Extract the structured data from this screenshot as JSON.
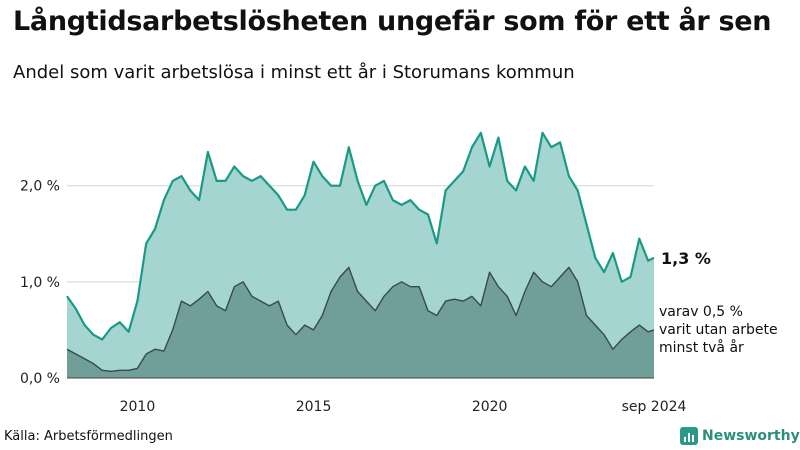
{
  "header": {
    "title": "Långtidsarbetslösheten ungefär som för ett år sen",
    "subtitle": "Andel som varit arbetslösa i minst ett år i Storumans kommun"
  },
  "footer": {
    "source": "Källa: Arbetsförmedlingen",
    "brand": "Newsworthy"
  },
  "colors": {
    "total_line": "#1a9a85",
    "total_fill": "#a4d5d0",
    "long_line": "#3b4a45",
    "long_fill": "#6f9f98",
    "grid": "#d6d6d6"
  },
  "chart_data": {
    "type": "area",
    "title": "Långtidsarbetslösheten ungefär som för ett år sen",
    "subtitle": "Andel som varit arbetslösa i minst ett år i Storumans kommun",
    "unit": "%",
    "ylim": [
      0,
      2.6
    ],
    "yticks": [
      0,
      1.0,
      2.0
    ],
    "ytick_labels": [
      "0,0 %",
      "1,0 %",
      "2,0 %"
    ],
    "xlim": [
      "2008-01",
      "2024-09"
    ],
    "xticks": [
      "2010-01",
      "2015-01",
      "2020-01",
      "2024-09"
    ],
    "xtick_labels": [
      "2010",
      "2015",
      "2020",
      "sep 2024"
    ],
    "grid": true,
    "annotations": {
      "total_end_label": "1,3 %",
      "long_end_label": [
        "varav 0,5 %",
        "varit utan arbete",
        "minst två år"
      ]
    },
    "series": [
      {
        "name": "varit arbetslösa i minst ett år",
        "points": [
          [
            "2008-01",
            0.85
          ],
          [
            "2008-04",
            0.72
          ],
          [
            "2008-07",
            0.55
          ],
          [
            "2008-10",
            0.45
          ],
          [
            "2009-01",
            0.4
          ],
          [
            "2009-04",
            0.52
          ],
          [
            "2009-07",
            0.58
          ],
          [
            "2009-10",
            0.48
          ],
          [
            "2010-01",
            0.8
          ],
          [
            "2010-04",
            1.4
          ],
          [
            "2010-07",
            1.55
          ],
          [
            "2010-10",
            1.85
          ],
          [
            "2011-01",
            2.05
          ],
          [
            "2011-04",
            2.1
          ],
          [
            "2011-07",
            1.95
          ],
          [
            "2011-10",
            1.85
          ],
          [
            "2012-01",
            2.35
          ],
          [
            "2012-04",
            2.05
          ],
          [
            "2012-07",
            2.05
          ],
          [
            "2012-10",
            2.2
          ],
          [
            "2013-01",
            2.1
          ],
          [
            "2013-04",
            2.05
          ],
          [
            "2013-07",
            2.1
          ],
          [
            "2013-10",
            2.0
          ],
          [
            "2014-01",
            1.9
          ],
          [
            "2014-04",
            1.75
          ],
          [
            "2014-07",
            1.75
          ],
          [
            "2014-10",
            1.9
          ],
          [
            "2015-01",
            2.25
          ],
          [
            "2015-04",
            2.1
          ],
          [
            "2015-07",
            2.0
          ],
          [
            "2015-10",
            2.0
          ],
          [
            "2016-01",
            2.4
          ],
          [
            "2016-04",
            2.05
          ],
          [
            "2016-07",
            1.8
          ],
          [
            "2016-10",
            2.0
          ],
          [
            "2017-01",
            2.05
          ],
          [
            "2017-04",
            1.85
          ],
          [
            "2017-07",
            1.8
          ],
          [
            "2017-10",
            1.85
          ],
          [
            "2018-01",
            1.75
          ],
          [
            "2018-04",
            1.7
          ],
          [
            "2018-07",
            1.4
          ],
          [
            "2018-10",
            1.95
          ],
          [
            "2019-01",
            2.05
          ],
          [
            "2019-04",
            2.15
          ],
          [
            "2019-07",
            2.4
          ],
          [
            "2019-10",
            2.55
          ],
          [
            "2020-01",
            2.2
          ],
          [
            "2020-04",
            2.5
          ],
          [
            "2020-07",
            2.05
          ],
          [
            "2020-10",
            1.95
          ],
          [
            "2021-01",
            2.2
          ],
          [
            "2021-04",
            2.05
          ],
          [
            "2021-07",
            2.55
          ],
          [
            "2021-10",
            2.4
          ],
          [
            "2022-01",
            2.45
          ],
          [
            "2022-04",
            2.1
          ],
          [
            "2022-07",
            1.95
          ],
          [
            "2022-10",
            1.6
          ],
          [
            "2023-01",
            1.25
          ],
          [
            "2023-04",
            1.1
          ],
          [
            "2023-07",
            1.3
          ],
          [
            "2023-10",
            1.0
          ],
          [
            "2024-01",
            1.05
          ],
          [
            "2024-04",
            1.45
          ],
          [
            "2024-07",
            1.22
          ],
          [
            "2024-09",
            1.25
          ]
        ]
      },
      {
        "name": "varit utan arbete minst två år",
        "points": [
          [
            "2008-01",
            0.3
          ],
          [
            "2008-04",
            0.25
          ],
          [
            "2008-07",
            0.2
          ],
          [
            "2008-10",
            0.15
          ],
          [
            "2009-01",
            0.08
          ],
          [
            "2009-04",
            0.07
          ],
          [
            "2009-07",
            0.08
          ],
          [
            "2009-10",
            0.08
          ],
          [
            "2010-01",
            0.1
          ],
          [
            "2010-04",
            0.25
          ],
          [
            "2010-07",
            0.3
          ],
          [
            "2010-10",
            0.28
          ],
          [
            "2011-01",
            0.5
          ],
          [
            "2011-04",
            0.8
          ],
          [
            "2011-07",
            0.75
          ],
          [
            "2011-10",
            0.82
          ],
          [
            "2012-01",
            0.9
          ],
          [
            "2012-04",
            0.75
          ],
          [
            "2012-07",
            0.7
          ],
          [
            "2012-10",
            0.95
          ],
          [
            "2013-01",
            1.0
          ],
          [
            "2013-04",
            0.85
          ],
          [
            "2013-07",
            0.8
          ],
          [
            "2013-10",
            0.75
          ],
          [
            "2014-01",
            0.8
          ],
          [
            "2014-04",
            0.55
          ],
          [
            "2014-07",
            0.45
          ],
          [
            "2014-10",
            0.55
          ],
          [
            "2015-01",
            0.5
          ],
          [
            "2015-04",
            0.65
          ],
          [
            "2015-07",
            0.9
          ],
          [
            "2015-10",
            1.05
          ],
          [
            "2016-01",
            1.15
          ],
          [
            "2016-04",
            0.9
          ],
          [
            "2016-07",
            0.8
          ],
          [
            "2016-10",
            0.7
          ],
          [
            "2017-01",
            0.85
          ],
          [
            "2017-04",
            0.95
          ],
          [
            "2017-07",
            1.0
          ],
          [
            "2017-10",
            0.95
          ],
          [
            "2018-01",
            0.95
          ],
          [
            "2018-04",
            0.7
          ],
          [
            "2018-07",
            0.65
          ],
          [
            "2018-10",
            0.8
          ],
          [
            "2019-01",
            0.82
          ],
          [
            "2019-04",
            0.8
          ],
          [
            "2019-07",
            0.85
          ],
          [
            "2019-10",
            0.75
          ],
          [
            "2020-01",
            1.1
          ],
          [
            "2020-04",
            0.95
          ],
          [
            "2020-07",
            0.85
          ],
          [
            "2020-10",
            0.65
          ],
          [
            "2021-01",
            0.9
          ],
          [
            "2021-04",
            1.1
          ],
          [
            "2021-07",
            1.0
          ],
          [
            "2021-10",
            0.95
          ],
          [
            "2022-01",
            1.05
          ],
          [
            "2022-04",
            1.15
          ],
          [
            "2022-07",
            1.0
          ],
          [
            "2022-10",
            0.65
          ],
          [
            "2023-01",
            0.55
          ],
          [
            "2023-04",
            0.45
          ],
          [
            "2023-07",
            0.3
          ],
          [
            "2023-10",
            0.4
          ],
          [
            "2024-01",
            0.48
          ],
          [
            "2024-04",
            0.55
          ],
          [
            "2024-07",
            0.48
          ],
          [
            "2024-09",
            0.5
          ]
        ]
      }
    ]
  }
}
